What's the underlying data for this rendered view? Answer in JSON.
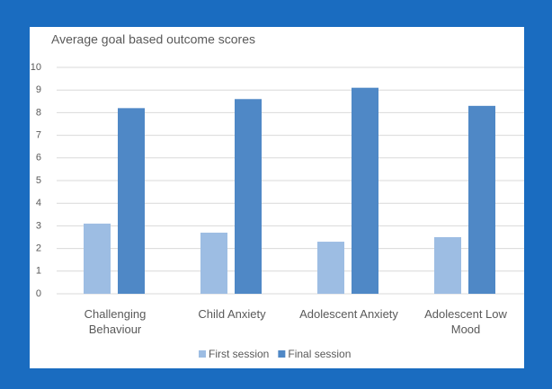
{
  "chart_data": {
    "type": "bar",
    "title": "Average goal based outcome scores",
    "categories": [
      "Challenging Behaviour",
      "Child Anxiety",
      "Adolescent Anxiety",
      "Adolescent Low Mood"
    ],
    "series": [
      {
        "name": "First session",
        "color": "#9dbde3",
        "values": [
          3.1,
          2.7,
          2.3,
          2.5
        ]
      },
      {
        "name": "Final session",
        "color": "#4f88c6",
        "values": [
          8.2,
          8.6,
          9.1,
          8.3
        ]
      }
    ],
    "ylim": [
      0,
      10
    ],
    "yticks": [
      0,
      1,
      2,
      3,
      4,
      5,
      6,
      7,
      8,
      9,
      10
    ],
    "grid": true,
    "legend": "bottom"
  }
}
